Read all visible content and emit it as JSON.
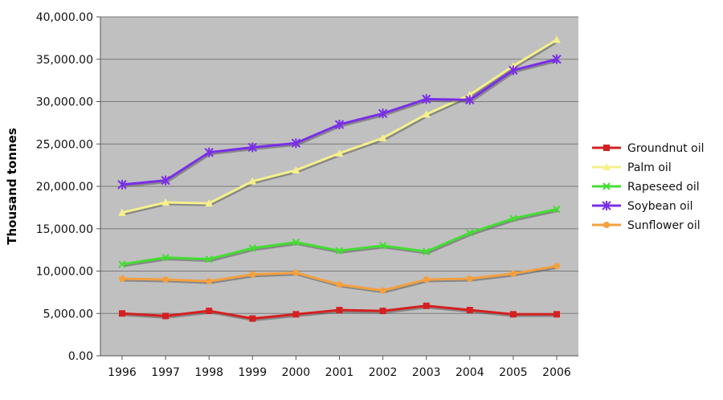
{
  "chart_data": {
    "type": "line",
    "title": "",
    "xlabel": "",
    "ylabel": "Thousand tonnes",
    "x": [
      "1996",
      "1997",
      "1998",
      "1999",
      "2000",
      "2001",
      "2002",
      "2003",
      "2004",
      "2005",
      "2006"
    ],
    "ylim": [
      0,
      40000
    ],
    "yticks": [
      "0.00",
      "5,000.00",
      "10,000.00",
      "15,000.00",
      "20,000.00",
      "25,000.00",
      "30,000.00",
      "35,000.00",
      "40,000.00"
    ],
    "grid": true,
    "legend_position": "right",
    "plot_background": "#c0c0c0",
    "series": [
      {
        "name": "Groundnut oil",
        "color": "#d42020",
        "marker": "square",
        "values": [
          5000,
          4700,
          5300,
          4400,
          4900,
          5400,
          5300,
          5900,
          5400,
          4900,
          4900
        ]
      },
      {
        "name": "Palm oil",
        "color": "#f5f08c",
        "marker": "triangle",
        "values": [
          16900,
          18100,
          18000,
          20600,
          21900,
          23900,
          25700,
          28500,
          30800,
          34200,
          37300
        ]
      },
      {
        "name": "Rapeseed oil",
        "color": "#44dd33",
        "marker": "x",
        "values": [
          10800,
          11600,
          11400,
          12700,
          13400,
          12400,
          13000,
          12300,
          14500,
          16200,
          17300
        ]
      },
      {
        "name": "Soybean oil",
        "color": "#7a2ee8",
        "marker": "star",
        "values": [
          20200,
          20700,
          24000,
          24600,
          25100,
          27300,
          28600,
          30300,
          30200,
          33700,
          35000
        ]
      },
      {
        "name": "Sunflower oil",
        "color": "#f3a040",
        "marker": "circle",
        "values": [
          9100,
          9000,
          8800,
          9600,
          9800,
          8400,
          7700,
          9000,
          9100,
          9700,
          10600
        ]
      }
    ]
  }
}
